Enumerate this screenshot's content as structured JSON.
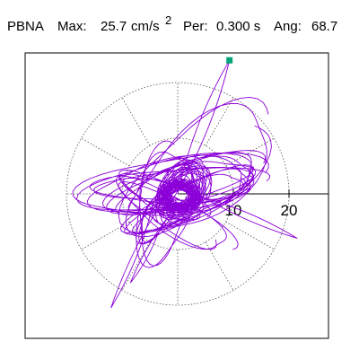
{
  "header": {
    "station": "PBNA",
    "max_label": "Max:",
    "max_value": "25.7",
    "max_unit": "cm/s",
    "max_exp": "2",
    "period_label": "Per:",
    "period_value": "0.300 s",
    "angle_label": "Ang:",
    "angle_value": "68.7"
  },
  "colors": {
    "trace": "#8b00d8",
    "peak_marker": "#00a37a",
    "rings": "#555555",
    "frame": "#000000"
  },
  "chart_data": {
    "type": "scatter",
    "description_kind": "particle-motion orbit",
    "title": "",
    "rings": [
      10,
      20
    ],
    "ring_labels": [
      "10",
      "20"
    ],
    "radial_spoke_step_deg": 30,
    "axis_ticks": [
      10,
      20
    ],
    "max_amplitude": 25.7,
    "peak_angle_deg": 68.7,
    "peak_point": {
      "x": 9.3,
      "y": 24.0
    },
    "trace_segments": [
      {
        "cx": 0.3,
        "cy": -0.4,
        "rx": 3.6,
        "ry": 2.9,
        "rot": 0,
        "turns": 30,
        "decay": 0.55
      },
      {
        "cx": 0.8,
        "cy": 0.2,
        "rx": 6.5,
        "ry": 4.2,
        "rot": 55,
        "turns": 14,
        "decay": 0.5
      },
      {
        "cx": 1.5,
        "cy": 1.5,
        "rx": 14.5,
        "ry": 4.3,
        "rot": 16,
        "turns": 4,
        "decay": 0.25
      },
      {
        "cx": -1.0,
        "cy": 1.5,
        "rx": 17.0,
        "ry": 5.2,
        "rot": 8,
        "turns": 3,
        "decay": 0.2
      },
      {
        "cx": 2.0,
        "cy": -1.5,
        "rx": 12.5,
        "ry": 3.2,
        "rot": 25,
        "turns": 3,
        "decay": 0.2
      },
      {
        "cx": -2.5,
        "cy": -0.5,
        "rx": 8.6,
        "ry": 2.8,
        "rot": -25,
        "turns": 3,
        "decay": 0.2
      },
      {
        "cx": 0.5,
        "cy": 1.5,
        "rx": 15.5,
        "ry": 3.2,
        "rot": 3,
        "turns": 2,
        "decay": 0.15
      },
      {
        "cx": -0.5,
        "cy": -4.0,
        "rx": 12.0,
        "ry": 3.5,
        "rot": -30,
        "turns": 2,
        "decay": 0.2
      },
      {
        "cx": -2.5,
        "cy": -2.0,
        "rx": 11.0,
        "ry": 5.0,
        "rot": 80,
        "turns": 2,
        "decay": 0.15
      },
      {
        "cx": 4.0,
        "cy": 4.0,
        "rx": 16.0,
        "ry": 8.0,
        "rot": 40,
        "turns": 2,
        "decay": 0.1
      },
      {
        "cx": -4.0,
        "cy": -4.5,
        "rx": 5.0,
        "ry": 2.5,
        "rot": 60,
        "turns": 3,
        "decay": 0.2
      }
    ],
    "trace_extras": [
      {
        "from": {
          "x": 0.0,
          "y": 0.0
        },
        "to": {
          "x": 9.3,
          "y": 24.0
        }
      },
      {
        "from": {
          "x": 9.3,
          "y": 24.0
        },
        "to": {
          "x": -1.5,
          "y": -2.0
        }
      },
      {
        "from": {
          "x": -4.5,
          "y": -2.0
        },
        "to": {
          "x": -12.0,
          "y": -20.5
        }
      },
      {
        "from": {
          "x": -12.0,
          "y": -20.5
        },
        "to": {
          "x": 1.0,
          "y": 4.0
        }
      },
      {
        "from": {
          "x": 2.0,
          "y": 0.0
        },
        "to": {
          "x": 21.5,
          "y": -8.0
        }
      },
      {
        "from": {
          "x": 21.5,
          "y": -8.0
        },
        "to": {
          "x": -1.0,
          "y": 3.0
        }
      },
      {
        "from": {
          "x": -3.5,
          "y": -7.0
        },
        "to": {
          "x": -8.5,
          "y": -16.0
        }
      },
      {
        "from": {
          "x": -8.5,
          "y": -16.0
        },
        "to": {
          "x": 0.0,
          "y": -2.0
        }
      }
    ]
  }
}
